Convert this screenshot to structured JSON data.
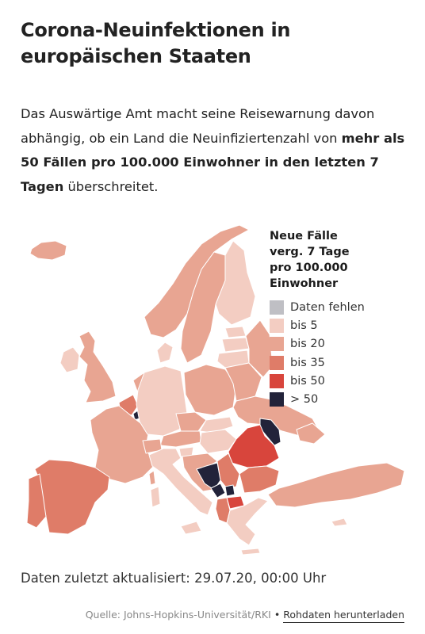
{
  "header": {
    "title": "Corona-Neuinfektionen in europäischen Staaten",
    "intro_plain": "Das Auswärtige Amt macht seine Reisewarnung davon abhängig, ob ein Land die Neuinfiziertenzahl von ",
    "intro_bold": "mehr als 50 Fällen pro 100.000 Einwohner in den letzten 7 Tagen",
    "intro_end": " überschreitet."
  },
  "legend": {
    "title": "Neue Fälle verg. 7 Tage pro 100.000 Einwohner",
    "items": [
      {
        "label": "Daten fehlen",
        "color": "#bfbfc4"
      },
      {
        "label": "bis 5",
        "color": "#f3cdc2"
      },
      {
        "label": "bis 20",
        "color": "#e8a592"
      },
      {
        "label": "bis 35",
        "color": "#df7c68"
      },
      {
        "label": "bis 50",
        "color": "#d8453c"
      },
      {
        "label": "> 50",
        "color": "#22233a"
      }
    ]
  },
  "map": {
    "countries": [
      {
        "name": "Iceland",
        "class": "bis 20"
      },
      {
        "name": "Ireland",
        "class": "bis 5"
      },
      {
        "name": "United Kingdom",
        "class": "bis 20"
      },
      {
        "name": "Portugal",
        "class": "bis 35"
      },
      {
        "name": "Spain",
        "class": "bis 35"
      },
      {
        "name": "France",
        "class": "bis 20"
      },
      {
        "name": "Belgium",
        "class": "bis 35"
      },
      {
        "name": "Luxembourg",
        "class": "> 50"
      },
      {
        "name": "Netherlands",
        "class": "bis 20"
      },
      {
        "name": "Switzerland",
        "class": "bis 20"
      },
      {
        "name": "Italy",
        "class": "bis 5"
      },
      {
        "name": "Germany",
        "class": "bis 5"
      },
      {
        "name": "Denmark",
        "class": "bis 5"
      },
      {
        "name": "Norway",
        "class": "bis 20"
      },
      {
        "name": "Sweden",
        "class": "bis 20"
      },
      {
        "name": "Finland",
        "class": "bis 5"
      },
      {
        "name": "Estonia",
        "class": "bis 5"
      },
      {
        "name": "Latvia",
        "class": "bis 5"
      },
      {
        "name": "Lithuania",
        "class": "bis 5"
      },
      {
        "name": "Poland",
        "class": "bis 20"
      },
      {
        "name": "Belarus",
        "class": "bis 20"
      },
      {
        "name": "Ukraine",
        "class": "bis 20"
      },
      {
        "name": "Czechia",
        "class": "bis 20"
      },
      {
        "name": "Slovakia",
        "class": "bis 5"
      },
      {
        "name": "Austria",
        "class": "bis 20"
      },
      {
        "name": "Slovenia",
        "class": "bis 5"
      },
      {
        "name": "Hungary",
        "class": "bis 5"
      },
      {
        "name": "Croatia",
        "class": "bis 20"
      },
      {
        "name": "Bosnia and Herzegovina",
        "class": "> 50"
      },
      {
        "name": "Serbia",
        "class": "bis 35"
      },
      {
        "name": "Montenegro",
        "class": "> 50"
      },
      {
        "name": "Kosovo",
        "class": "> 50"
      },
      {
        "name": "North Macedonia",
        "class": "bis 50"
      },
      {
        "name": "Albania",
        "class": "bis 35"
      },
      {
        "name": "Romania",
        "class": "bis 50"
      },
      {
        "name": "Moldova",
        "class": "> 50"
      },
      {
        "name": "Bulgaria",
        "class": "bis 35"
      },
      {
        "name": "Greece",
        "class": "bis 5"
      },
      {
        "name": "Turkey",
        "class": "bis 20"
      },
      {
        "name": "Russia",
        "class": "bis 20"
      },
      {
        "name": "Cyprus",
        "class": "bis 5"
      }
    ]
  },
  "footer": {
    "updated": "Daten zuletzt aktualisiert: 29.07.20, 00:00 Uhr",
    "source": "Quelle: Johns-Hopkins-Universität/RKI",
    "separator": "•",
    "download_link": "Rohdaten herunterladen"
  }
}
